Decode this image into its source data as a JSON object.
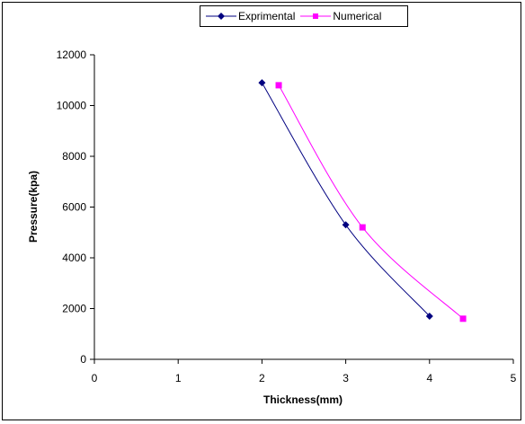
{
  "chart_data": {
    "type": "line",
    "title": "",
    "xlabel": "Thickness(mm)",
    "ylabel": "Pressure(kpa)",
    "xlim": [
      0,
      5
    ],
    "ylim": [
      0,
      12000
    ],
    "x_ticks": [
      "0",
      "1",
      "2",
      "3",
      "4",
      "5"
    ],
    "y_ticks": [
      "0",
      "2000",
      "4000",
      "6000",
      "8000",
      "10000",
      "12000"
    ],
    "grid": false,
    "legend_position": "top",
    "series": [
      {
        "name": "Exprimental",
        "color": "#000080",
        "marker": "diamond",
        "x": [
          2,
          3,
          4
        ],
        "y": [
          10900,
          5300,
          1700
        ]
      },
      {
        "name": "Numerical",
        "color": "#ff00ff",
        "marker": "square",
        "x": [
          2.2,
          3.2,
          4.4
        ],
        "y": [
          10800,
          5200,
          1600
        ]
      }
    ]
  }
}
